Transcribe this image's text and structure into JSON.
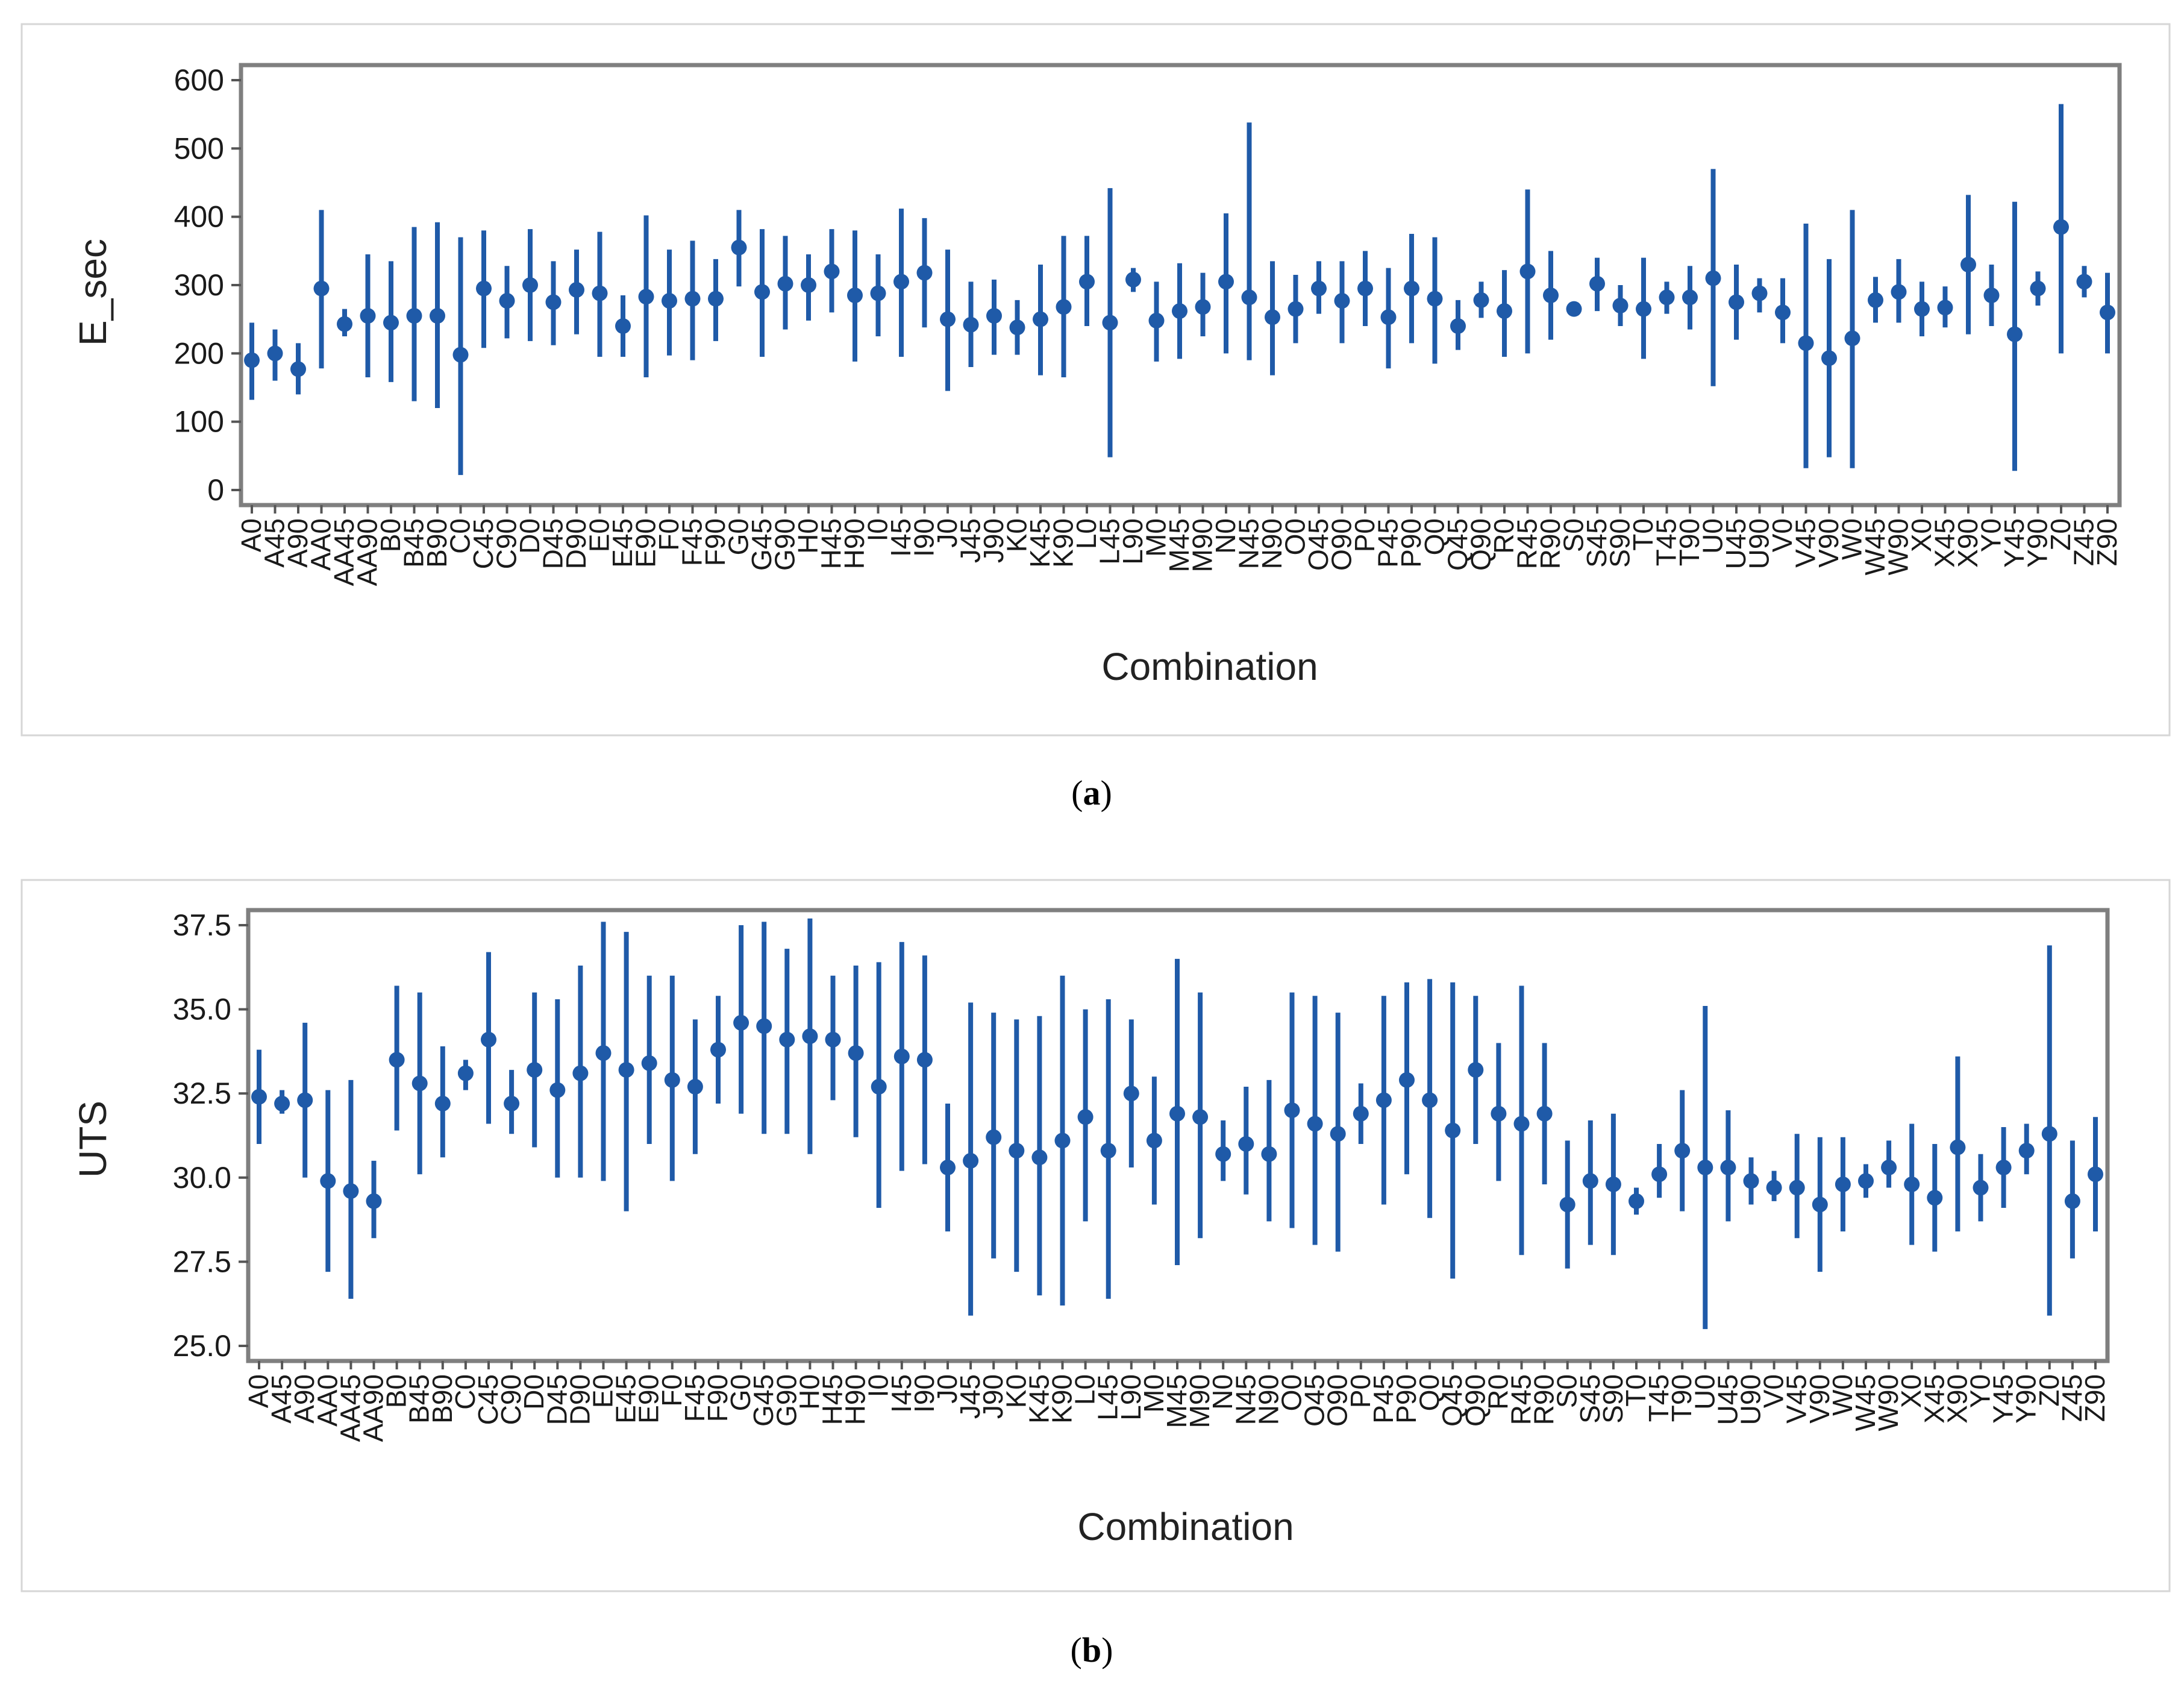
{
  "colors": {
    "series": "#1f5aa8",
    "axis": "#7f7f7f",
    "frame": "#d6d6d6"
  },
  "chart_data": [
    {
      "type": "interval",
      "panel": "(a)",
      "caption": {
        "open": "(",
        "letter": "a",
        "close": ")"
      },
      "xlabel": "Combination",
      "ylabel": "E_sec",
      "ylim": [
        0,
        600
      ],
      "yticks": [
        "0",
        "100",
        "200",
        "300",
        "400",
        "500",
        "600"
      ],
      "yticks_num": [
        0,
        100,
        200,
        300,
        400,
        500,
        600
      ],
      "categories": [
        "A0",
        "A45",
        "A90",
        "AA0",
        "AA45",
        "AA90",
        "B0",
        "B45",
        "B90",
        "C0",
        "C45",
        "C90",
        "D0",
        "D45",
        "D90",
        "E0",
        "E45",
        "E90",
        "F0",
        "F45",
        "F90",
        "G0",
        "G45",
        "G90",
        "H0",
        "H45",
        "H90",
        "I0",
        "I45",
        "I90",
        "J0",
        "J45",
        "J90",
        "K0",
        "K45",
        "K90",
        "L0",
        "L45",
        "L90",
        "M0",
        "M45",
        "M90",
        "N0",
        "N45",
        "N90",
        "O0",
        "O45",
        "O90",
        "P0",
        "P45",
        "P90",
        "Q0",
        "Q45",
        "Q90",
        "R0",
        "R45",
        "R90",
        "S0",
        "S45",
        "S90",
        "T0",
        "T45",
        "T90",
        "U0",
        "U45",
        "U90",
        "V0",
        "V45",
        "V90",
        "W0",
        "W45",
        "W90",
        "X0",
        "X45",
        "X90",
        "Y0",
        "Y45",
        "Y90",
        "Z0",
        "Z45",
        "Z90"
      ],
      "mean": [
        190,
        200,
        177,
        295,
        243,
        255,
        245,
        255,
        255,
        198,
        295,
        277,
        300,
        275,
        293,
        288,
        240,
        283,
        277,
        280,
        280,
        355,
        290,
        302,
        300,
        320,
        285,
        288,
        305,
        318,
        250,
        242,
        255,
        238,
        250,
        268,
        305,
        245,
        308,
        248,
        262,
        268,
        305,
        282,
        253,
        265,
        295,
        277,
        295,
        253,
        295,
        280,
        240,
        278,
        262,
        320,
        285,
        265,
        302,
        270,
        265,
        282,
        282,
        310,
        275,
        288,
        260,
        215,
        193,
        222,
        278,
        290,
        265,
        267,
        330,
        285,
        228,
        295,
        385,
        305,
        260
      ],
      "low": [
        132,
        160,
        140,
        178,
        225,
        165,
        158,
        130,
        120,
        22,
        208,
        222,
        218,
        212,
        228,
        195,
        195,
        165,
        197,
        190,
        218,
        298,
        195,
        235,
        248,
        260,
        188,
        225,
        195,
        238,
        145,
        180,
        198,
        198,
        168,
        165,
        240,
        48,
        290,
        188,
        192,
        225,
        200,
        190,
        168,
        215,
        258,
        215,
        240,
        178,
        215,
        185,
        205,
        252,
        195,
        200,
        220,
        258,
        262,
        240,
        192,
        258,
        235,
        152,
        220,
        260,
        215,
        32,
        48,
        32,
        245,
        245,
        225,
        238,
        228,
        240,
        28,
        270,
        200,
        282,
        200
      ],
      "high": [
        245,
        235,
        215,
        410,
        265,
        345,
        335,
        385,
        392,
        370,
        380,
        328,
        382,
        335,
        352,
        378,
        285,
        402,
        352,
        365,
        338,
        410,
        382,
        372,
        345,
        382,
        380,
        345,
        412,
        398,
        352,
        305,
        308,
        278,
        330,
        372,
        372,
        442,
        325,
        305,
        332,
        318,
        405,
        538,
        335,
        315,
        335,
        335,
        350,
        325,
        375,
        370,
        278,
        305,
        322,
        440,
        350,
        270,
        340,
        300,
        340,
        305,
        328,
        470,
        330,
        310,
        310,
        390,
        338,
        410,
        312,
        338,
        305,
        298,
        432,
        330,
        422,
        320,
        565,
        328,
        318
      ]
    },
    {
      "type": "interval",
      "panel": "(b)",
      "caption": {
        "open": "(",
        "letter": "b",
        "close": ")"
      },
      "xlabel": "Combination",
      "ylabel": "UTS",
      "ylim": [
        25.0,
        37.5
      ],
      "yticks": [
        "25.0",
        "27.5",
        "30.0",
        "32.5",
        "35.0",
        "37.5"
      ],
      "yticks_num": [
        25.0,
        27.5,
        30.0,
        32.5,
        35.0,
        37.5
      ],
      "categories": [
        "A0",
        "A45",
        "A90",
        "AA0",
        "AA45",
        "AA90",
        "B0",
        "B45",
        "B90",
        "C0",
        "C45",
        "C90",
        "D0",
        "D45",
        "D90",
        "E0",
        "E45",
        "E90",
        "F0",
        "F45",
        "F90",
        "G0",
        "G45",
        "G90",
        "H0",
        "H45",
        "H90",
        "I0",
        "I45",
        "I90",
        "J0",
        "J45",
        "J90",
        "K0",
        "K45",
        "K90",
        "L0",
        "L45",
        "L90",
        "M0",
        "M45",
        "M90",
        "N0",
        "N45",
        "N90",
        "O0",
        "O45",
        "O90",
        "P0",
        "P45",
        "P90",
        "Q0",
        "Q45",
        "Q90",
        "R0",
        "R45",
        "R90",
        "S0",
        "S45",
        "S90",
        "T0",
        "T45",
        "T90",
        "U0",
        "U45",
        "U90",
        "V0",
        "V45",
        "V90",
        "W0",
        "W45",
        "W90",
        "X0",
        "X45",
        "X90",
        "Y0",
        "Y45",
        "Y90",
        "Z0",
        "Z45",
        "Z90"
      ],
      "mean": [
        32.4,
        32.2,
        32.3,
        29.9,
        29.6,
        29.3,
        33.5,
        32.8,
        32.2,
        33.1,
        34.1,
        32.2,
        33.2,
        32.6,
        33.1,
        33.7,
        33.2,
        33.4,
        32.9,
        32.7,
        33.8,
        34.6,
        34.5,
        34.1,
        34.2,
        34.1,
        33.7,
        32.7,
        33.6,
        33.5,
        30.3,
        30.5,
        31.2,
        30.8,
        30.6,
        31.1,
        31.8,
        30.8,
        32.5,
        31.1,
        31.9,
        31.8,
        30.7,
        31.0,
        30.7,
        32.0,
        31.6,
        31.3,
        31.9,
        32.3,
        32.9,
        32.3,
        31.4,
        33.2,
        31.9,
        31.6,
        31.9,
        29.2,
        29.9,
        29.8,
        29.3,
        30.1,
        30.8,
        30.3,
        30.3,
        29.9,
        29.7,
        29.7,
        29.2,
        29.8,
        29.9,
        30.3,
        29.8,
        29.4,
        30.9,
        29.7,
        30.3,
        30.8,
        31.3,
        29.3,
        30.1
      ],
      "low": [
        31.0,
        31.9,
        30.0,
        27.2,
        26.4,
        28.2,
        31.4,
        30.1,
        30.6,
        32.6,
        31.6,
        31.3,
        30.9,
        30.0,
        30.0,
        29.9,
        29.0,
        31.0,
        29.9,
        30.7,
        32.2,
        31.9,
        31.3,
        31.3,
        30.7,
        32.3,
        31.2,
        29.1,
        30.2,
        30.4,
        28.4,
        25.9,
        27.6,
        27.2,
        26.5,
        26.2,
        28.7,
        26.4,
        30.3,
        29.2,
        27.4,
        28.2,
        29.9,
        29.5,
        28.7,
        28.5,
        28.0,
        27.8,
        31.0,
        29.2,
        30.1,
        28.8,
        27.0,
        31.0,
        29.9,
        27.7,
        29.8,
        27.3,
        28.0,
        27.7,
        28.9,
        29.4,
        29.0,
        25.5,
        28.7,
        29.2,
        29.3,
        28.2,
        27.2,
        28.4,
        29.4,
        29.7,
        28.0,
        27.8,
        28.4,
        28.7,
        29.1,
        30.1,
        25.9,
        27.6,
        28.4
      ],
      "high": [
        33.8,
        32.6,
        34.6,
        32.6,
        32.9,
        30.5,
        35.7,
        35.5,
        33.9,
        33.5,
        36.7,
        33.2,
        35.5,
        35.3,
        36.3,
        37.6,
        37.3,
        36.0,
        36.0,
        34.7,
        35.4,
        37.5,
        37.6,
        36.8,
        37.7,
        36.0,
        36.3,
        36.4,
        37.0,
        36.6,
        32.2,
        35.2,
        34.9,
        34.7,
        34.8,
        36.0,
        35.0,
        35.3,
        34.7,
        33.0,
        36.5,
        35.5,
        31.7,
        32.7,
        32.9,
        35.5,
        35.4,
        34.9,
        32.8,
        35.4,
        35.8,
        35.9,
        35.8,
        35.4,
        34.0,
        35.7,
        34.0,
        31.1,
        31.7,
        31.9,
        29.7,
        31.0,
        32.6,
        35.1,
        32.0,
        30.6,
        30.2,
        31.3,
        31.2,
        31.2,
        30.4,
        31.1,
        31.6,
        31.0,
        33.6,
        30.7,
        31.5,
        31.6,
        36.9,
        31.1,
        31.8
      ]
    }
  ]
}
